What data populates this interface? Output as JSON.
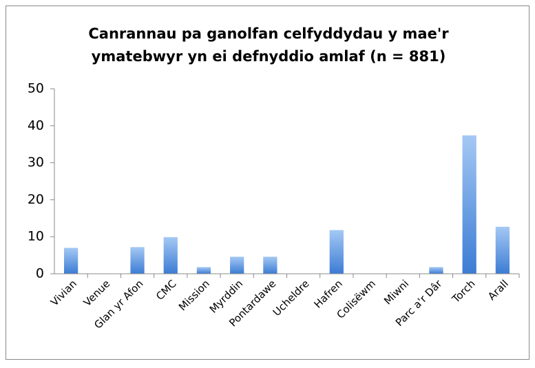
{
  "chart_data": {
    "type": "bar",
    "title": [
      "Canrannau pa ganolfan celfyddydau y mae'r",
      "ymatebwyr yn ei defnyddio amlaf (n = 881)"
    ],
    "categories": [
      "Vivian",
      "Venue",
      "Glan yr Afon",
      "CMC",
      "Mission",
      "Myrddin",
      "Pontardawe",
      "Ucheldre",
      "Hafren",
      "Colisëwm",
      "Miwni",
      "Parc a'r Dâr",
      "Torch",
      "Arall"
    ],
    "values": [
      7,
      0,
      7.2,
      9.9,
      1.8,
      4.6,
      4.6,
      0,
      11.8,
      0,
      0,
      1.8,
      37.4,
      12.7
    ],
    "color": [
      "#a4c8f4",
      "#3c7cd4"
    ],
    "ylim": [
      0,
      50
    ],
    "yticks": [
      0,
      10,
      20,
      30,
      40,
      50
    ],
    "grid": false
  }
}
